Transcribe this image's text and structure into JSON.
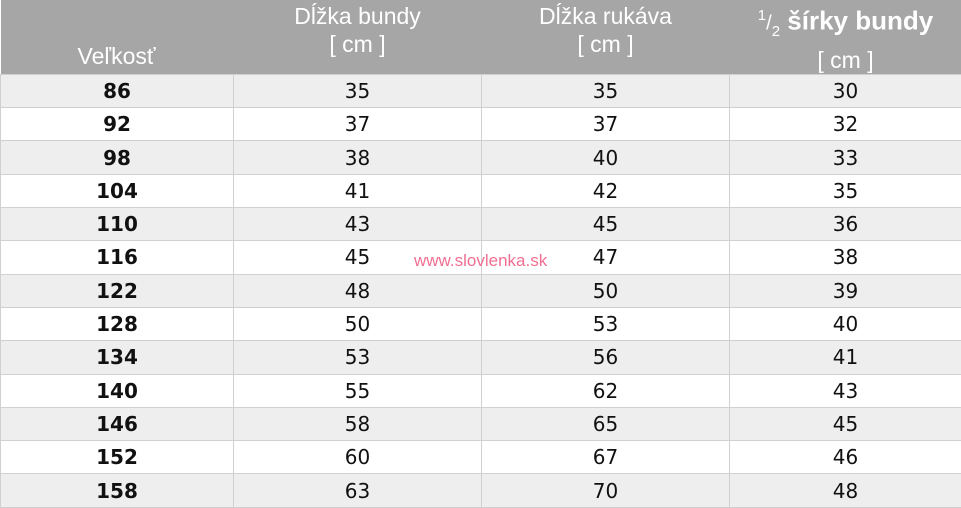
{
  "header": {
    "size": "Veľkosť",
    "col1": {
      "line1": "Dĺžka bundy",
      "line2": "[ cm ]"
    },
    "col2": {
      "line1": "Dĺžka rukáva",
      "line2": "[ cm ]"
    },
    "col3": {
      "frac_num": "1",
      "frac_den": "2",
      "line1": "šírky bundy",
      "line2": "[ cm ]"
    }
  },
  "rows": [
    [
      "86",
      "35",
      "35",
      "30"
    ],
    [
      "92",
      "37",
      "37",
      "32"
    ],
    [
      "98",
      "38",
      "40",
      "33"
    ],
    [
      "104",
      "41",
      "42",
      "35"
    ],
    [
      "110",
      "43",
      "45",
      "36"
    ],
    [
      "116",
      "45",
      "47",
      "38"
    ],
    [
      "122",
      "48",
      "50",
      "39"
    ],
    [
      "128",
      "50",
      "53",
      "40"
    ],
    [
      "134",
      "53",
      "56",
      "41"
    ],
    [
      "140",
      "55",
      "62",
      "43"
    ],
    [
      "146",
      "58",
      "65",
      "45"
    ],
    [
      "152",
      "60",
      "67",
      "46"
    ],
    [
      "158",
      "63",
      "70",
      "48"
    ]
  ],
  "watermark": "www.slovlenka.sk",
  "colors": {
    "header_bg": "#a6a6a6",
    "row_alt": "#eeeeee",
    "watermark": "#f06f93"
  }
}
